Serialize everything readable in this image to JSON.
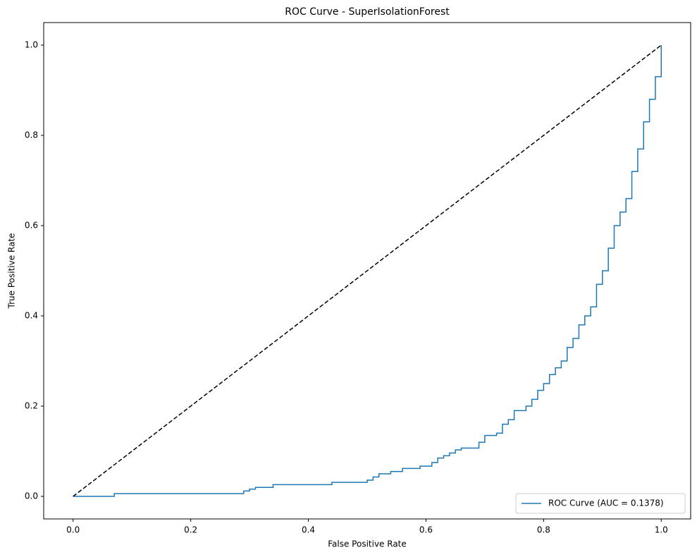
{
  "chart_data": {
    "type": "line",
    "title": "ROC Curve - SuperIsolationForest",
    "xlabel": "False Positive Rate",
    "ylabel": "True Positive Rate",
    "xlim": [
      -0.05,
      1.05
    ],
    "ylim": [
      -0.05,
      1.05
    ],
    "xticks": [
      {
        "value": 0,
        "label": "0.0"
      },
      0.2,
      0.4,
      0.6,
      0.8,
      {
        "value": 1,
        "label": "1.0"
      }
    ],
    "yticks": [
      {
        "value": 0,
        "label": "0.0"
      },
      0.2,
      0.4,
      0.6,
      0.8,
      {
        "value": 1,
        "label": "1.0"
      }
    ],
    "legend": "lower right",
    "series": [
      {
        "name": "ROC Curve (AUC = 0.1378)",
        "color": "#1f77b4",
        "dashed": false,
        "x": [
          0,
          0.07,
          0.07,
          0.29,
          0.29,
          0.3,
          0.3,
          0.31,
          0.31,
          0.34,
          0.34,
          0.44,
          0.44,
          0.5,
          0.5,
          0.51,
          0.51,
          0.52,
          0.52,
          0.54,
          0.54,
          0.56,
          0.56,
          0.59,
          0.59,
          0.61,
          0.61,
          0.62,
          0.62,
          0.63,
          0.63,
          0.64,
          0.64,
          0.65,
          0.65,
          0.66,
          0.66,
          0.69,
          0.69,
          0.7,
          0.7,
          0.72,
          0.72,
          0.73,
          0.73,
          0.74,
          0.74,
          0.75,
          0.75,
          0.77,
          0.77,
          0.78,
          0.78,
          0.79,
          0.79,
          0.8,
          0.8,
          0.81,
          0.81,
          0.82,
          0.82,
          0.83,
          0.83,
          0.84,
          0.84,
          0.85,
          0.85,
          0.86,
          0.86,
          0.87,
          0.87,
          0.88,
          0.88,
          0.89,
          0.89,
          0.9,
          0.9,
          0.91,
          0.91,
          0.92,
          0.92,
          0.93,
          0.93,
          0.94,
          0.94,
          0.95,
          0.95,
          0.96,
          0.96,
          0.97,
          0.97,
          0.98,
          0.98,
          0.99,
          0.99,
          1.0,
          1.0
        ],
        "values": [
          0,
          0,
          0.006,
          0.006,
          0.012,
          0.012,
          0.016,
          0.016,
          0.02,
          0.02,
          0.026,
          0.026,
          0.031,
          0.031,
          0.036,
          0.036,
          0.043,
          0.043,
          0.05,
          0.05,
          0.055,
          0.055,
          0.062,
          0.062,
          0.067,
          0.067,
          0.075,
          0.075,
          0.085,
          0.085,
          0.09,
          0.09,
          0.096,
          0.096,
          0.103,
          0.103,
          0.107,
          0.107,
          0.12,
          0.12,
          0.135,
          0.135,
          0.14,
          0.14,
          0.16,
          0.16,
          0.17,
          0.17,
          0.19,
          0.19,
          0.2,
          0.2,
          0.215,
          0.215,
          0.235,
          0.235,
          0.25,
          0.25,
          0.27,
          0.27,
          0.285,
          0.285,
          0.3,
          0.3,
          0.33,
          0.33,
          0.35,
          0.35,
          0.38,
          0.38,
          0.4,
          0.4,
          0.42,
          0.42,
          0.47,
          0.47,
          0.5,
          0.5,
          0.55,
          0.55,
          0.6,
          0.6,
          0.63,
          0.63,
          0.66,
          0.66,
          0.72,
          0.72,
          0.77,
          0.77,
          0.83,
          0.83,
          0.88,
          0.88,
          0.93,
          0.93,
          1.0
        ]
      },
      {
        "color": "#000000",
        "dashed": true,
        "x": [
          0,
          1
        ],
        "values": [
          0,
          1
        ]
      }
    ]
  }
}
